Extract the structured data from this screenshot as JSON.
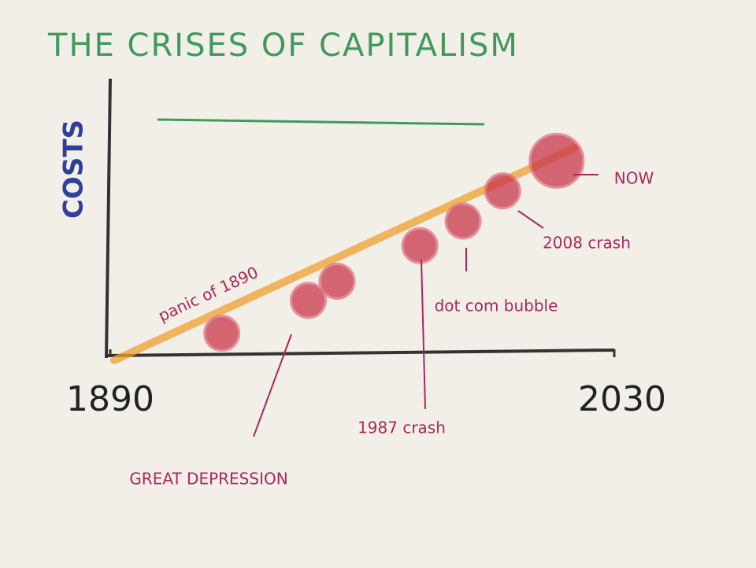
{
  "chart_data": {
    "type": "scatter",
    "title": "THE CRISES OF CAPITALISM",
    "y_label": "COSTS",
    "x": [
      1921,
      1945,
      1953,
      1976,
      1988,
      1999,
      2014
    ],
    "values": [
      7,
      19,
      26,
      39,
      48,
      59,
      70
    ],
    "color": "#c8384a",
    "xlim": [
      1890,
      2030
    ],
    "xticks": [
      1890,
      2030
    ],
    "ylim": [
      0,
      100
    ],
    "annotations": [
      "panic of 1890",
      "GREAT DEPRESSION",
      "1987 crash",
      "dot com bubble",
      "2008 crash",
      "NOW"
    ]
  }
}
